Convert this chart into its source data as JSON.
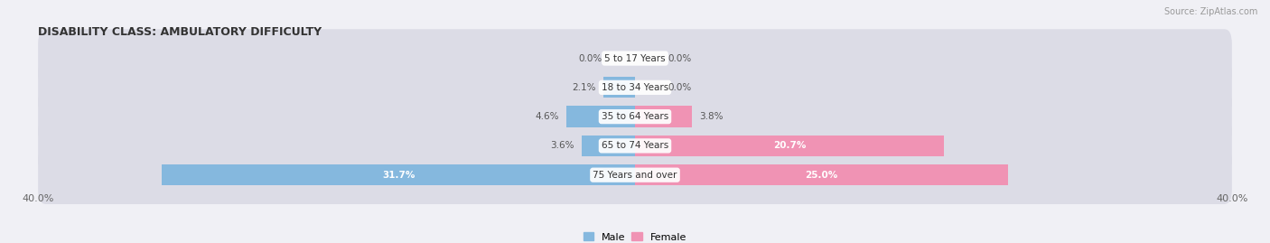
{
  "title": "DISABILITY CLASS: AMBULATORY DIFFICULTY",
  "source": "Source: ZipAtlas.com",
  "categories": [
    "5 to 17 Years",
    "18 to 34 Years",
    "35 to 64 Years",
    "65 to 74 Years",
    "75 Years and over"
  ],
  "male_values": [
    0.0,
    2.1,
    4.6,
    3.6,
    31.7
  ],
  "female_values": [
    0.0,
    0.0,
    3.8,
    20.7,
    25.0
  ],
  "x_max": 40.0,
  "male_color": "#85b8de",
  "female_color": "#f093b4",
  "row_bg_color": "#dcdce6",
  "fig_bg_color": "#f0f0f5",
  "label_color": "#555555",
  "title_color": "#333333",
  "value_label_color": "#555555",
  "bar_value_inside_color": "#ffffff",
  "figsize": [
    14.06,
    2.69
  ],
  "dpi": 100
}
